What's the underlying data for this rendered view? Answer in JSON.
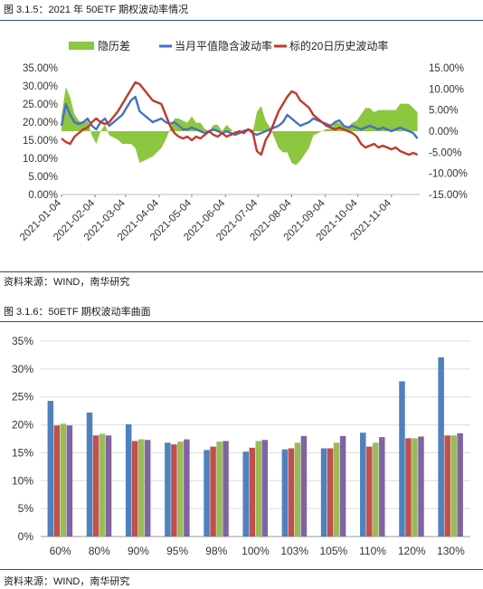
{
  "figures": {
    "fig1_title": "图 3.1.5：2021 年 50ETF 期权波动率情况",
    "fig1_source": "资料来源：WIND，南华研究",
    "fig2_title": "图 3.1.6：50ETF 期权波动率曲面",
    "fig2_source": "资料来源：WIND，南华研究"
  },
  "colors": {
    "rule": "#2a4f84",
    "area": "#8dc63f",
    "implied": "#4472c4",
    "historical": "#c0392b",
    "bar1": "#4f81bd",
    "bar2": "#c0504d",
    "bar3": "#9bbb59",
    "bar4": "#8064a2"
  },
  "chart_data": [
    {
      "type": "line",
      "title": "",
      "legend": [
        "隐历差",
        "当月平值隐含波动率",
        "标的20日历史波动率"
      ],
      "legend_position": "top",
      "x_ticks": [
        "2021-01-04",
        "2021-02-04",
        "2021-03-04",
        "2021-04-04",
        "2021-05-04",
        "2021-06-04",
        "2021-07-04",
        "2021-08-04",
        "2021-09-04",
        "2021-10-04",
        "2021-11-04"
      ],
      "x_range": [
        "2021-01-04",
        "2021-11-30"
      ],
      "y_left_ticks": [
        "35.00%",
        "30.00%",
        "25.00%",
        "20.00%",
        "15.00%",
        "10.00%",
        "5.00%",
        "0.00%"
      ],
      "y_left_range": [
        0,
        35
      ],
      "y_right_ticks": [
        "15.00%",
        "10.00%",
        "5.00%",
        "0.00%",
        "-5.00%",
        "-10.00%",
        "-15.00%"
      ],
      "y_right_range": [
        -15,
        15
      ],
      "x": [
        "2021-01-04",
        "2021-01-08",
        "2021-01-12",
        "2021-01-16",
        "2021-01-20",
        "2021-01-24",
        "2021-01-28",
        "2021-02-01",
        "2021-02-05",
        "2021-02-09",
        "2021-02-13",
        "2021-02-17",
        "2021-02-21",
        "2021-02-25",
        "2021-03-01",
        "2021-03-05",
        "2021-03-09",
        "2021-03-13",
        "2021-03-17",
        "2021-03-21",
        "2021-03-25",
        "2021-03-29",
        "2021-04-02",
        "2021-04-06",
        "2021-04-10",
        "2021-04-14",
        "2021-04-18",
        "2021-04-22",
        "2021-04-26",
        "2021-04-30",
        "2021-05-04",
        "2021-05-08",
        "2021-05-12",
        "2021-05-16",
        "2021-05-20",
        "2021-05-24",
        "2021-05-28",
        "2021-06-01",
        "2021-06-05",
        "2021-06-09",
        "2021-06-13",
        "2021-06-17",
        "2021-06-21",
        "2021-06-25",
        "2021-06-29",
        "2021-07-03",
        "2021-07-07",
        "2021-07-11",
        "2021-07-15",
        "2021-07-19",
        "2021-07-23",
        "2021-07-27",
        "2021-07-31",
        "2021-08-04",
        "2021-08-08",
        "2021-08-12",
        "2021-08-16",
        "2021-08-20",
        "2021-08-24",
        "2021-08-28",
        "2021-09-01",
        "2021-09-05",
        "2021-09-09",
        "2021-09-13",
        "2021-09-17",
        "2021-09-21",
        "2021-09-25",
        "2021-09-29",
        "2021-10-03",
        "2021-10-07",
        "2021-10-11",
        "2021-10-15",
        "2021-10-19",
        "2021-10-23",
        "2021-10-27",
        "2021-10-31",
        "2021-11-04",
        "2021-11-08",
        "2021-11-12",
        "2021-11-16",
        "2021-11-20",
        "2021-11-24",
        "2021-11-28"
      ],
      "series": [
        {
          "name": "当月平值隐含波动率",
          "axis": "left",
          "values": [
            19.0,
            25.0,
            22.0,
            20.0,
            19.5,
            20.0,
            21.0,
            19.0,
            18.0,
            20.0,
            21.0,
            19.0,
            20.0,
            21.0,
            22.0,
            24.0,
            26.0,
            27.0,
            23.0,
            22.0,
            21.0,
            20.0,
            20.5,
            21.0,
            20.0,
            19.5,
            20.0,
            19.0,
            18.0,
            18.0,
            18.5,
            18.0,
            17.5,
            17.0,
            17.5,
            18.0,
            17.5,
            17.0,
            17.5,
            17.0,
            16.5,
            17.0,
            17.5,
            18.0,
            17.0,
            16.5,
            17.0,
            17.5,
            18.0,
            18.5,
            19.0,
            20.0,
            22.0,
            21.0,
            20.0,
            19.0,
            19.5,
            20.0,
            21.0,
            20.5,
            20.0,
            19.5,
            19.0,
            20.0,
            20.5,
            19.0,
            18.5,
            19.0,
            18.5,
            18.0,
            18.5,
            19.0,
            18.5,
            18.0,
            18.5,
            18.0,
            17.5,
            18.0,
            18.5,
            18.0,
            17.5,
            17.0,
            15.5
          ]
        },
        {
          "name": "标的20日历史波动率",
          "axis": "left",
          "values": [
            15.5,
            14.5,
            14.0,
            16.0,
            17.0,
            18.0,
            18.5,
            20.0,
            21.0,
            20.0,
            19.5,
            20.0,
            21.5,
            23.0,
            25.0,
            27.0,
            29.0,
            31.0,
            30.5,
            29.0,
            27.5,
            26.0,
            25.5,
            25.0,
            22.0,
            19.0,
            17.0,
            16.0,
            15.5,
            16.0,
            15.0,
            16.0,
            15.5,
            16.5,
            17.5,
            16.5,
            16.0,
            17.0,
            16.0,
            16.5,
            17.0,
            17.5,
            17.0,
            18.0,
            17.5,
            12.0,
            11.0,
            15.0,
            17.0,
            20.0,
            23.0,
            25.0,
            27.0,
            28.5,
            28.0,
            26.0,
            25.0,
            24.0,
            22.0,
            21.0,
            20.0,
            19.0,
            18.5,
            18.0,
            18.5,
            18.0,
            17.5,
            17.0,
            16.0,
            14.0,
            13.0,
            13.5,
            14.0,
            13.0,
            13.5,
            13.0,
            12.5,
            13.0,
            12.0,
            11.5,
            11.0,
            11.5,
            11.0
          ]
        },
        {
          "name": "隐历差",
          "axis": "right",
          "type": "area",
          "values": [
            3.5,
            10.5,
            8.0,
            4.0,
            2.5,
            2.0,
            2.5,
            -1.0,
            -3.0,
            0.0,
            1.5,
            -1.0,
            -1.5,
            -2.0,
            -3.0,
            -3.0,
            -3.0,
            -4.0,
            -7.5,
            -7.0,
            -6.5,
            -6.0,
            -5.0,
            -4.0,
            -2.0,
            0.5,
            3.0,
            3.0,
            2.5,
            2.0,
            3.5,
            2.0,
            2.0,
            0.5,
            0.0,
            1.5,
            1.5,
            0.0,
            1.5,
            0.5,
            -0.5,
            -0.5,
            0.5,
            0.0,
            -0.5,
            4.5,
            6.0,
            2.5,
            1.0,
            -1.5,
            -4.0,
            -5.0,
            -5.0,
            -7.5,
            -8.0,
            -7.0,
            -5.5,
            -4.0,
            -1.0,
            -0.5,
            0.0,
            0.5,
            0.5,
            2.0,
            2.0,
            1.0,
            1.0,
            2.0,
            2.5,
            4.0,
            5.5,
            5.5,
            4.5,
            5.0,
            5.0,
            5.0,
            5.0,
            5.0,
            6.5,
            6.5,
            6.5,
            5.5,
            4.5
          ]
        }
      ]
    },
    {
      "type": "bar",
      "title": "",
      "categories": [
        "60%",
        "80%",
        "90%",
        "95%",
        "98%",
        "100%",
        "103%",
        "105%",
        "110%",
        "120%",
        "130%"
      ],
      "ylim": [
        0,
        35
      ],
      "y_ticks": [
        "35%",
        "30%",
        "25%",
        "20%",
        "15%",
        "10%",
        "5%",
        "0%"
      ],
      "series": [
        {
          "values": [
            24.3,
            22.2,
            20.1,
            16.8,
            15.5,
            15.2,
            15.6,
            15.8,
            18.6,
            27.8,
            32.1
          ]
        },
        {
          "values": [
            19.9,
            18.1,
            17.1,
            16.5,
            16.1,
            15.9,
            15.8,
            15.8,
            16.1,
            17.6,
            18.1
          ]
        },
        {
          "values": [
            20.2,
            18.4,
            17.4,
            17.0,
            17.0,
            17.1,
            16.8,
            16.8,
            16.8,
            17.6,
            18.1
          ]
        },
        {
          "values": [
            19.9,
            18.1,
            17.3,
            17.4,
            17.1,
            17.3,
            18.0,
            18.0,
            17.8,
            17.9,
            18.5
          ]
        }
      ]
    }
  ]
}
